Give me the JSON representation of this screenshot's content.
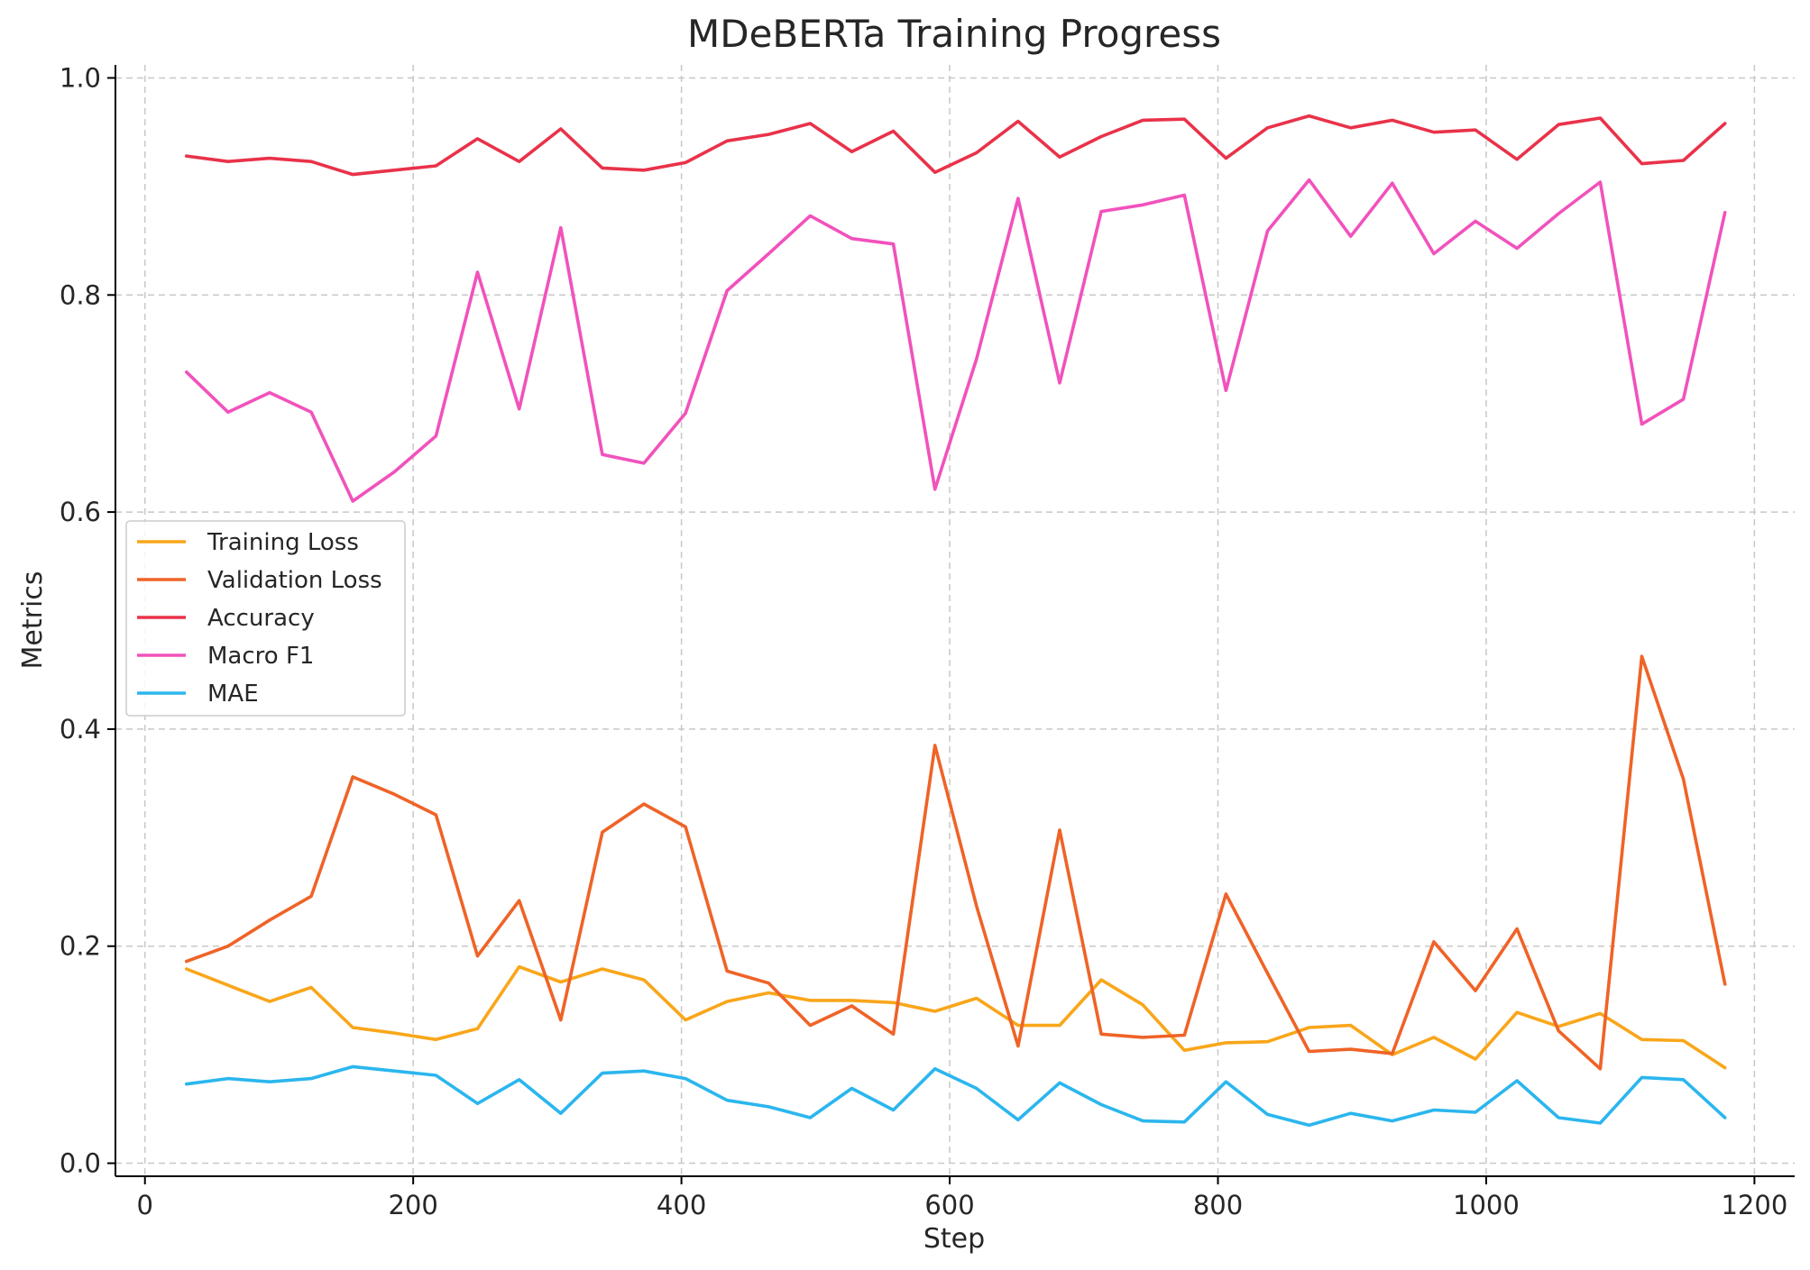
{
  "chart_data": {
    "type": "line",
    "title": "MDeBERTa Training Progress",
    "xlabel": "Step",
    "ylabel": "Metrics",
    "xlim": [
      -22,
      1230
    ],
    "ylim": [
      -0.012,
      1.012
    ],
    "x_ticks": [
      0,
      200,
      400,
      600,
      800,
      1000,
      1200
    ],
    "y_ticks": [
      0.0,
      0.2,
      0.4,
      0.6,
      0.8,
      1.0
    ],
    "x_tick_labels": [
      "0",
      "200",
      "400",
      "600",
      "800",
      "1000",
      "1200"
    ],
    "y_tick_labels": [
      "0.0",
      "0.2",
      "0.4",
      "0.6",
      "0.8",
      "1.0"
    ],
    "grid": true,
    "legend_position": "center-left",
    "x": [
      31,
      62,
      93,
      124,
      155,
      186,
      217,
      248,
      279,
      310,
      341,
      372,
      403,
      434,
      465,
      496,
      527,
      558,
      589,
      620,
      651,
      682,
      713,
      744,
      775,
      806,
      837,
      868,
      899,
      930,
      961,
      992,
      1023,
      1054,
      1085,
      1116,
      1147,
      1178
    ],
    "series": [
      {
        "name": "Training Loss",
        "color": "#f9a61a",
        "values": [
          0.179,
          0.164,
          0.149,
          0.162,
          0.125,
          0.12,
          0.114,
          0.124,
          0.181,
          0.167,
          0.179,
          0.169,
          0.132,
          0.149,
          0.157,
          0.15,
          0.15,
          0.148,
          0.14,
          0.152,
          0.127,
          0.127,
          0.169,
          0.146,
          0.104,
          0.111,
          0.112,
          0.125,
          0.127,
          0.1,
          0.116,
          0.096,
          0.139,
          0.126,
          0.138,
          0.114,
          0.113,
          0.088
        ]
      },
      {
        "name": "Validation Loss",
        "color": "#ef6327",
        "values": [
          0.186,
          0.2,
          0.224,
          0.246,
          0.356,
          0.34,
          0.321,
          0.191,
          0.242,
          0.132,
          0.305,
          0.331,
          0.31,
          0.177,
          0.166,
          0.127,
          0.145,
          0.119,
          0.385,
          0.237,
          0.108,
          0.307,
          0.119,
          0.116,
          0.118,
          0.248,
          0.175,
          0.103,
          0.105,
          0.101,
          0.204,
          0.159,
          0.216,
          0.122,
          0.087,
          0.467,
          0.354,
          0.165
        ]
      },
      {
        "name": "Accuracy",
        "color": "#e9324a",
        "values": [
          0.928,
          0.923,
          0.926,
          0.923,
          0.911,
          0.915,
          0.919,
          0.944,
          0.923,
          0.953,
          0.917,
          0.915,
          0.922,
          0.942,
          0.948,
          0.958,
          0.932,
          0.951,
          0.913,
          0.931,
          0.96,
          0.927,
          0.946,
          0.961,
          0.962,
          0.926,
          0.954,
          0.965,
          0.954,
          0.961,
          0.95,
          0.952,
          0.925,
          0.957,
          0.963,
          0.921,
          0.924,
          0.958
        ]
      },
      {
        "name": "Macro F1",
        "color": "#f152bc",
        "values": [
          0.729,
          0.692,
          0.71,
          0.692,
          0.61,
          0.637,
          0.67,
          0.821,
          0.695,
          0.862,
          0.653,
          0.645,
          0.691,
          0.804,
          0.838,
          0.873,
          0.852,
          0.847,
          0.621,
          0.741,
          0.889,
          0.719,
          0.877,
          0.883,
          0.892,
          0.712,
          0.859,
          0.906,
          0.854,
          0.903,
          0.838,
          0.868,
          0.843,
          0.875,
          0.904,
          0.681,
          0.704,
          0.876
        ]
      },
      {
        "name": "MAE",
        "color": "#2bb6ee",
        "values": [
          0.073,
          0.078,
          0.075,
          0.078,
          0.089,
          0.085,
          0.081,
          0.055,
          0.077,
          0.046,
          0.083,
          0.085,
          0.078,
          0.058,
          0.052,
          0.042,
          0.069,
          0.049,
          0.087,
          0.069,
          0.04,
          0.074,
          0.054,
          0.039,
          0.038,
          0.075,
          0.045,
          0.035,
          0.046,
          0.039,
          0.049,
          0.047,
          0.076,
          0.042,
          0.037,
          0.079,
          0.077,
          0.042
        ]
      }
    ]
  }
}
